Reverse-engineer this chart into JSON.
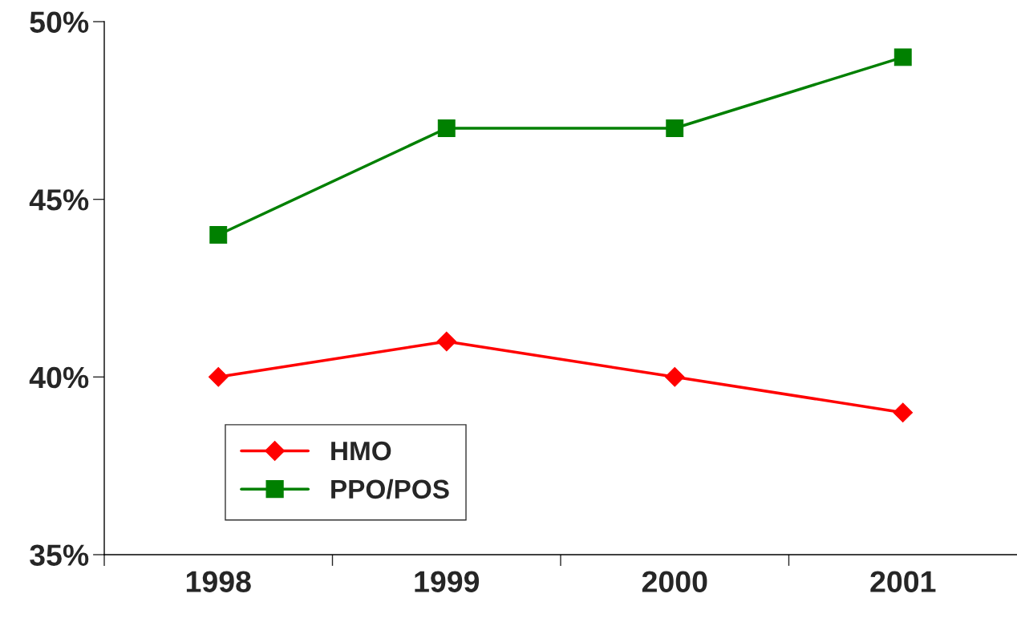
{
  "chart_data": {
    "type": "line",
    "categories": [
      "1998",
      "1999",
      "2000",
      "2001"
    ],
    "series": [
      {
        "name": "HMO",
        "color": "#ff0000",
        "marker": "diamond",
        "values": [
          40,
          41,
          40,
          39
        ]
      },
      {
        "name": "PPO/POS",
        "color": "#008000",
        "marker": "square",
        "values": [
          44,
          47,
          47,
          49
        ]
      }
    ],
    "ylim": [
      35,
      50
    ],
    "yticks": [
      {
        "value": 35,
        "label": "35%"
      },
      {
        "value": 40,
        "label": "40%"
      },
      {
        "value": 45,
        "label": "45%"
      },
      {
        "value": 50,
        "label": "50%"
      }
    ],
    "grid": false,
    "legend": "bottom left",
    "line_style": "solid"
  }
}
